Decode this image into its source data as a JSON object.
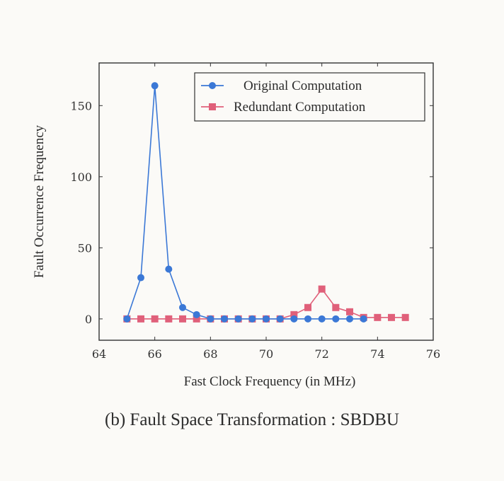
{
  "chart_data": {
    "type": "line",
    "xlabel": "Fast Clock Frequency (in MHz)",
    "ylabel": "Fault Occurrence Frequency",
    "xlim": [
      64,
      76
    ],
    "ylim": [
      -15,
      180
    ],
    "xticks": [
      "64",
      "66",
      "68",
      "70",
      "72",
      "74",
      "76"
    ],
    "yticks": [
      "0",
      "50",
      "100",
      "150"
    ],
    "grid": false,
    "legend_position": "top-right",
    "series": [
      {
        "name": "Original Computation",
        "color": "#3b78d6",
        "marker": "circle",
        "x": [
          65,
          65.5,
          66,
          66.5,
          67,
          67.5,
          68,
          68.5,
          69,
          69.5,
          70,
          70.5,
          71,
          71.5,
          72,
          72.5,
          73,
          73.5
        ],
        "y": [
          0,
          29,
          164,
          35,
          8,
          3,
          0,
          0,
          0,
          0,
          0,
          0,
          0,
          0,
          0,
          0,
          0,
          0
        ]
      },
      {
        "name": "Redundant Computation",
        "color": "#e0607a",
        "marker": "square",
        "x": [
          65,
          65.5,
          66,
          66.5,
          67,
          67.5,
          68,
          68.5,
          69,
          69.5,
          70,
          70.5,
          71,
          71.5,
          72,
          72.5,
          73,
          73.5,
          74,
          74.5,
          75
        ],
        "y": [
          0,
          0,
          0,
          0,
          0,
          0,
          0,
          0,
          0,
          0,
          0,
          0,
          3,
          8,
          21,
          8,
          5,
          1,
          1,
          1,
          1
        ]
      }
    ]
  },
  "caption": "(b) Fault Space Transformation : SBDBU"
}
